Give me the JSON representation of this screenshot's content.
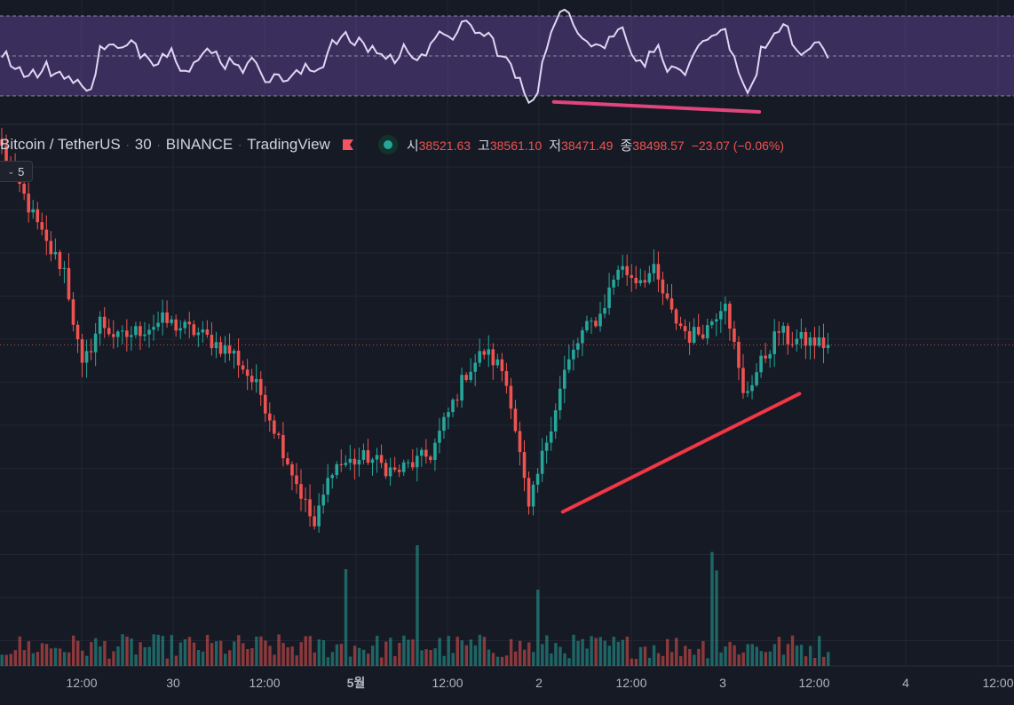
{
  "legend": {
    "symbol": "Bitcoin / TetherUS",
    "interval": "30",
    "exchange": "BINANCE",
    "source": "TradingView",
    "open_label": "시",
    "open": "38521.63",
    "high_label": "고",
    "high": "38561.10",
    "low_label": "저",
    "low": "38471.49",
    "close_label": "종",
    "close": "38498.57",
    "change": "−23.07 (−0.06%)",
    "indicator_count": "5"
  },
  "colors": {
    "background": "#161a25",
    "up": "#26a69a",
    "down": "#ef5350",
    "trendline": "#f23645",
    "rsi_band": "#7e57c2",
    "rsi_line": "#e1d5f5",
    "rsi_trendline": "#e0457b"
  },
  "icons": [
    "red-flag-icon",
    "status-dot-icon",
    "chevron-down-icon"
  ],
  "chart_data": {
    "type": "candlestick",
    "title": "Bitcoin / TetherUS · 30 · BINANCE",
    "x_tick_labels": [
      "12:00",
      "30",
      "12:00",
      "5월",
      "12:00",
      "2",
      "12:00",
      "3",
      "12:00",
      "4",
      "12:00"
    ],
    "ylim": [
      37500,
      39200
    ],
    "price_knots": [
      [
        0,
        39150
      ],
      [
        10,
        38830
      ],
      [
        14,
        38750
      ],
      [
        18,
        38420
      ],
      [
        22,
        38580
      ],
      [
        26,
        38520
      ],
      [
        36,
        38580
      ],
      [
        44,
        38540
      ],
      [
        52,
        38470
      ],
      [
        58,
        38340
      ],
      [
        64,
        38120
      ],
      [
        70,
        37900
      ],
      [
        74,
        38100
      ],
      [
        82,
        38130
      ],
      [
        88,
        38080
      ],
      [
        96,
        38140
      ],
      [
        104,
        38410
      ],
      [
        108,
        38480
      ],
      [
        112,
        38420
      ],
      [
        114,
        38320
      ],
      [
        118,
        37950
      ],
      [
        122,
        38190
      ],
      [
        126,
        38410
      ],
      [
        130,
        38540
      ],
      [
        134,
        38600
      ],
      [
        138,
        38760
      ],
      [
        142,
        38720
      ],
      [
        146,
        38740
      ],
      [
        150,
        38600
      ],
      [
        154,
        38530
      ],
      [
        158,
        38560
      ],
      [
        162,
        38660
      ],
      [
        166,
        38330
      ],
      [
        170,
        38440
      ],
      [
        174,
        38550
      ],
      [
        176,
        38520
      ],
      [
        182,
        38510
      ],
      [
        185,
        38500
      ]
    ],
    "volume_levels": {
      "typical": "low",
      "spikes_at": [
        "5월 before 12:00",
        "3 after 12:00"
      ]
    },
    "rsi": {
      "upper_band": 70,
      "lower_band": 30,
      "mid": 50,
      "visible_range": [
        20,
        90
      ],
      "divergence_line": {
        "from_rsi": 27,
        "to_rsi": 22
      }
    },
    "price_trendline": {
      "from_price": 37950,
      "to_price": 38340
    },
    "grid": true,
    "legend_position": "top-left"
  }
}
